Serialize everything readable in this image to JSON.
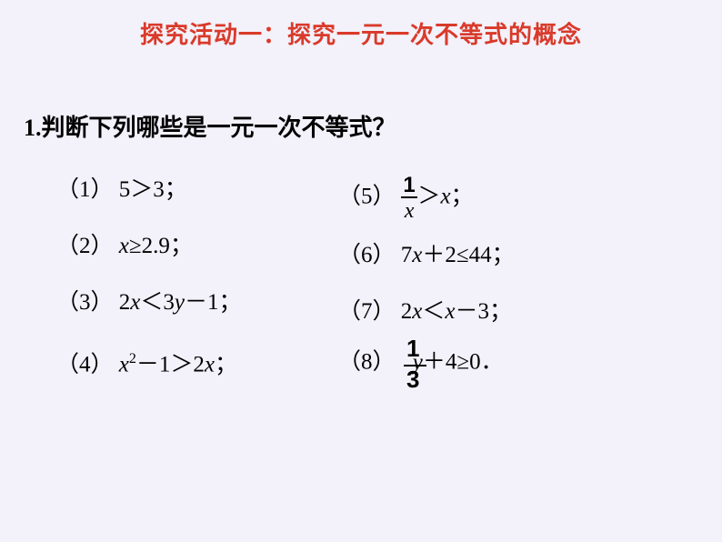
{
  "title": "探究活动一：探究一元一次不等式的概念",
  "question": "1.判断下列哪些是一元一次不等式？",
  "items": {
    "i1": {
      "label": "（1）",
      "text": "5＞3；"
    },
    "i2": {
      "label": "（2）",
      "x": "x",
      "text": "≥2.9；"
    },
    "i3": {
      "label": "（3）",
      "lhs": "2",
      "x": "x",
      "mid": "＜3",
      "y": "y",
      "tail": "－1；"
    },
    "i4": {
      "label": "（4）",
      "x": "x",
      "sup": "2",
      "mid": "－1＞2",
      "x2": "x",
      "tail": "；"
    },
    "i5": {
      "label": "（5）",
      "num": "1",
      "den": "x",
      "gt": "＞",
      "x": "x",
      "tail": "；"
    },
    "i6": {
      "label": "（6）",
      "lhs": "7",
      "x": "x",
      "tail": "＋2≤44；"
    },
    "i7": {
      "label": "（7）",
      "lhs": "2",
      "x": "x",
      "mid": "＜",
      "x2": "x",
      "tail": "－3；"
    },
    "i8": {
      "label": "（8）",
      "num": "1",
      "den": "3",
      "y": "y",
      "tail": "＋4≥0．"
    }
  },
  "colors": {
    "title": "#d93a2a",
    "background": "#f3f1fa",
    "text": "#000000"
  }
}
